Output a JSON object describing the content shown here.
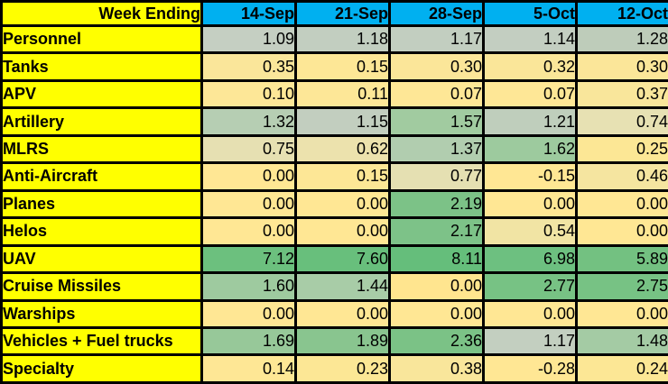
{
  "table": {
    "corner_label": "Week Ending"
  },
  "colors": {
    "label_yellow": "#FFFF00",
    "header_blue": "#00B0F0",
    "border_black": "#000000",
    "text_black": "#000000"
  },
  "chart_data": {
    "type": "heatmap",
    "title": "",
    "corner_label": "Week Ending",
    "columns": [
      "14-Sep",
      "21-Sep",
      "28-Sep",
      "5-Oct",
      "12-Oct"
    ],
    "rows": [
      "Personnel",
      "Tanks",
      "APV",
      "Artillery",
      "MLRS",
      "Anti-Aircraft",
      "Planes",
      "Helos",
      "UAV",
      "Cruise Missiles",
      "Warships",
      "Vehicles + Fuel trucks",
      "Specialty"
    ],
    "series": [
      {
        "name": "Personnel",
        "values": [
          1.09,
          1.18,
          1.17,
          1.14,
          1.28
        ],
        "colors": [
          "#C5CFC2",
          "#C2CEC0",
          "#C2CEC0",
          "#C3CEC1",
          "#BECCBA"
        ]
      },
      {
        "name": "Tanks",
        "values": [
          0.35,
          0.15,
          0.3,
          0.32,
          0.3
        ],
        "colors": [
          "#FAE69A",
          "#FDE796",
          "#FBE699",
          "#FAE699",
          "#FBE699"
        ]
      },
      {
        "name": "APV",
        "values": [
          0.1,
          0.11,
          0.07,
          0.07,
          0.37
        ],
        "colors": [
          "#FDE797",
          "#FDE797",
          "#FEE796",
          "#FEE796",
          "#F9E69B"
        ]
      },
      {
        "name": "Artillery",
        "values": [
          1.32,
          1.15,
          1.57,
          1.21,
          0.74
        ],
        "colors": [
          "#B6CEB3",
          "#C2CEBF",
          "#A1CBA0",
          "#BFCEBC",
          "#E7E1B3"
        ]
      },
      {
        "name": "MLRS",
        "values": [
          0.75,
          0.62,
          1.37,
          1.62,
          0.25
        ],
        "colors": [
          "#E6E0B2",
          "#ECE2AD",
          "#B1CDAF",
          "#9DCA9E",
          "#FCE795"
        ]
      },
      {
        "name": "Anti-Aircraft",
        "values": [
          0.0,
          0.15,
          0.77,
          -0.15,
          0.46
        ],
        "colors": [
          "#FFE794",
          "#FDE796",
          "#E5E0B2",
          "#FFE794",
          "#F5E5A0"
        ]
      },
      {
        "name": "Planes",
        "values": [
          0.0,
          0.0,
          2.19,
          0.0,
          0.0
        ],
        "colors": [
          "#FFE794",
          "#FFE794",
          "#7CC287",
          "#FFE794",
          "#FFE794"
        ]
      },
      {
        "name": "Helos",
        "values": [
          0.0,
          0.0,
          2.17,
          0.54,
          0.0
        ],
        "colors": [
          "#FFE794",
          "#FFE794",
          "#7DC288",
          "#F1E4A4",
          "#FFE794"
        ]
      },
      {
        "name": "UAV",
        "values": [
          7.12,
          7.6,
          8.11,
          6.98,
          5.89
        ],
        "colors": [
          "#6CC07E",
          "#68BF7C",
          "#65BE7B",
          "#6DC080",
          "#73C181"
        ]
      },
      {
        "name": "Cruise Missiles",
        "values": [
          1.6,
          1.44,
          0.0,
          2.77,
          2.75
        ],
        "colors": [
          "#9ECA9F",
          "#A8CCA7",
          "#FFE58F",
          "#77C284",
          "#77C284"
        ]
      },
      {
        "name": "Warships",
        "values": [
          0.0,
          0.0,
          0.0,
          0.0,
          0.0
        ],
        "colors": [
          "#FFE794",
          "#FFE794",
          "#FFE794",
          "#FFE794",
          "#FFE794"
        ]
      },
      {
        "name": "Vehicles + Fuel trucks",
        "values": [
          1.69,
          1.89,
          2.36,
          1.17,
          1.48
        ],
        "colors": [
          "#97C899",
          "#89C58F",
          "#7BC286",
          "#C3CFC0",
          "#A4CBA4"
        ]
      },
      {
        "name": "Specialty",
        "values": [
          0.14,
          0.23,
          0.38,
          -0.28,
          0.24
        ],
        "colors": [
          "#FEE795",
          "#FCE795",
          "#F9E69B",
          "#FFE794",
          "#FCE795"
        ]
      }
    ],
    "value_format": "2-decimals",
    "color_scale_hint": {
      "low": "#FFE794",
      "mid": "#C3CEC1",
      "high": "#63BE7B"
    },
    "grid": true,
    "legend": "none"
  }
}
